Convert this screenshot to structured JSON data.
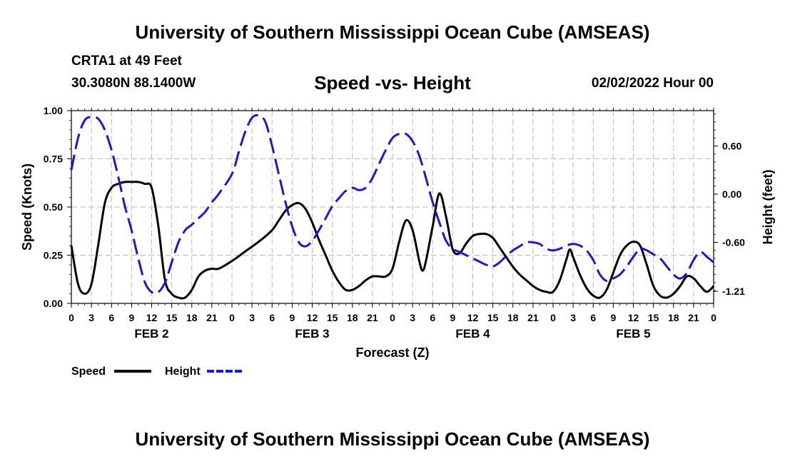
{
  "header": {
    "main_title": "University of Southern Mississippi Ocean Cube (AMSEAS)",
    "station": "CRTA1 at 49 Feet",
    "coordinates": "30.3080N  88.1400W",
    "chart_title": "Speed -vs- Height",
    "timestamp": "02/02/2022 Hour 00"
  },
  "footer": {
    "title": "University of Southern Mississippi Ocean Cube (AMSEAS)"
  },
  "legend": {
    "speed_label": "Speed",
    "height_label": "Height"
  },
  "colors": {
    "speed": "#000000",
    "height": "#1a1acc",
    "grid": "#bbbbbb"
  },
  "chart_data": {
    "type": "line",
    "title": "Speed -vs- Height",
    "xlabel": "Forecast (Z)",
    "ylabel": "Speed (Knots)",
    "y2label": "Height (feet)",
    "xlim": [
      0,
      96
    ],
    "ylim": [
      0,
      1.0
    ],
    "y2lim": [
      -1.36,
      1.04
    ],
    "x_tick_labels": [
      "0",
      "3",
      "6",
      "9",
      "12",
      "15",
      "18",
      "21",
      "0",
      "3",
      "6",
      "9",
      "12",
      "15",
      "18",
      "21",
      "0",
      "3",
      "6",
      "9",
      "12",
      "15",
      "18",
      "21",
      "0",
      "3",
      "6",
      "9",
      "12",
      "15",
      "18",
      "21",
      "0"
    ],
    "y_ticks": [
      {
        "value": 0.0,
        "label": "0.00"
      },
      {
        "value": 0.25,
        "label": "0.25"
      },
      {
        "value": 0.5,
        "label": "0.50"
      },
      {
        "value": 0.75,
        "label": "0.75"
      },
      {
        "value": 1.0,
        "label": "1.00"
      }
    ],
    "y2_ticks": [
      {
        "value": 0.6,
        "label": "0.60"
      },
      {
        "value": 0.0,
        "label": "0.00"
      },
      {
        "value": -0.6,
        "label": "-0.60"
      },
      {
        "value": -1.21,
        "label": "-1.21"
      }
    ],
    "day_labels": [
      {
        "label": "FEB 2",
        "hour": 12
      },
      {
        "label": "FEB 3",
        "hour": 36
      },
      {
        "label": "FEB 4",
        "hour": 60
      },
      {
        "label": "FEB 5",
        "hour": 84
      }
    ],
    "series": [
      {
        "name": "Speed",
        "axis": "left",
        "style": "solid",
        "points": [
          [
            0,
            0.3
          ],
          [
            1,
            0.1
          ],
          [
            2,
            0.05
          ],
          [
            3,
            0.1
          ],
          [
            4,
            0.3
          ],
          [
            5,
            0.52
          ],
          [
            6,
            0.6
          ],
          [
            7,
            0.62
          ],
          [
            8,
            0.63
          ],
          [
            9,
            0.63
          ],
          [
            10,
            0.63
          ],
          [
            11,
            0.62
          ],
          [
            12,
            0.6
          ],
          [
            13,
            0.4
          ],
          [
            14,
            0.12
          ],
          [
            15,
            0.05
          ],
          [
            16,
            0.03
          ],
          [
            17,
            0.03
          ],
          [
            18,
            0.07
          ],
          [
            19,
            0.14
          ],
          [
            20,
            0.17
          ],
          [
            21,
            0.18
          ],
          [
            22,
            0.18
          ],
          [
            24,
            0.22
          ],
          [
            26,
            0.27
          ],
          [
            28,
            0.32
          ],
          [
            30,
            0.38
          ],
          [
            31,
            0.43
          ],
          [
            32,
            0.48
          ],
          [
            33,
            0.51
          ],
          [
            34,
            0.52
          ],
          [
            35,
            0.49
          ],
          [
            36,
            0.42
          ],
          [
            37,
            0.33
          ],
          [
            38,
            0.25
          ],
          [
            39,
            0.17
          ],
          [
            40,
            0.11
          ],
          [
            41,
            0.07
          ],
          [
            42,
            0.07
          ],
          [
            43,
            0.09
          ],
          [
            44,
            0.12
          ],
          [
            45,
            0.14
          ],
          [
            46,
            0.14
          ],
          [
            47,
            0.14
          ],
          [
            48,
            0.18
          ],
          [
            49,
            0.32
          ],
          [
            50,
            0.43
          ],
          [
            51,
            0.38
          ],
          [
            52,
            0.22
          ],
          [
            52.5,
            0.17
          ],
          [
            53,
            0.22
          ],
          [
            54,
            0.4
          ],
          [
            55,
            0.57
          ],
          [
            56,
            0.45
          ],
          [
            57,
            0.28
          ],
          [
            58,
            0.26
          ],
          [
            59,
            0.31
          ],
          [
            60,
            0.35
          ],
          [
            61,
            0.36
          ],
          [
            62,
            0.36
          ],
          [
            63,
            0.34
          ],
          [
            64,
            0.29
          ],
          [
            65,
            0.24
          ],
          [
            66,
            0.19
          ],
          [
            67,
            0.15
          ],
          [
            68,
            0.12
          ],
          [
            69,
            0.09
          ],
          [
            70,
            0.07
          ],
          [
            71,
            0.06
          ],
          [
            72,
            0.06
          ],
          [
            73,
            0.12
          ],
          [
            74,
            0.23
          ],
          [
            74.5,
            0.28
          ],
          [
            75,
            0.24
          ],
          [
            76,
            0.15
          ],
          [
            77,
            0.08
          ],
          [
            78,
            0.04
          ],
          [
            79,
            0.03
          ],
          [
            80,
            0.07
          ],
          [
            81,
            0.16
          ],
          [
            82,
            0.25
          ],
          [
            83,
            0.3
          ],
          [
            84,
            0.32
          ],
          [
            85,
            0.3
          ],
          [
            86,
            0.2
          ],
          [
            87,
            0.09
          ],
          [
            88,
            0.04
          ],
          [
            89,
            0.03
          ],
          [
            90,
            0.05
          ],
          [
            91,
            0.09
          ],
          [
            92,
            0.14
          ],
          [
            93,
            0.13
          ],
          [
            94,
            0.09
          ],
          [
            95,
            0.06
          ],
          [
            96,
            0.09
          ]
        ]
      },
      {
        "name": "Height",
        "axis": "right",
        "style": "dashed",
        "points": [
          [
            0,
            0.3
          ],
          [
            1,
            0.7
          ],
          [
            2,
            0.92
          ],
          [
            3,
            0.96
          ],
          [
            4,
            0.94
          ],
          [
            5,
            0.8
          ],
          [
            6,
            0.55
          ],
          [
            7,
            0.22
          ],
          [
            8,
            -0.15
          ],
          [
            9,
            -0.45
          ],
          [
            10,
            -0.8
          ],
          [
            11,
            -1.1
          ],
          [
            12,
            -1.22
          ],
          [
            13,
            -1.22
          ],
          [
            14,
            -1.1
          ],
          [
            15,
            -0.85
          ],
          [
            16,
            -0.6
          ],
          [
            17,
            -0.45
          ],
          [
            18,
            -0.38
          ],
          [
            19,
            -0.3
          ],
          [
            20,
            -0.22
          ],
          [
            21,
            -0.1
          ],
          [
            22,
            0.0
          ],
          [
            24,
            0.25
          ],
          [
            25,
            0.52
          ],
          [
            26,
            0.78
          ],
          [
            27,
            0.95
          ],
          [
            28,
            0.98
          ],
          [
            29,
            0.9
          ],
          [
            30,
            0.6
          ],
          [
            31,
            0.25
          ],
          [
            32,
            -0.1
          ],
          [
            33,
            -0.4
          ],
          [
            34,
            -0.6
          ],
          [
            35,
            -0.65
          ],
          [
            36,
            -0.58
          ],
          [
            37,
            -0.45
          ],
          [
            38,
            -0.3
          ],
          [
            39,
            -0.15
          ],
          [
            40,
            -0.05
          ],
          [
            41,
            0.04
          ],
          [
            42,
            0.08
          ],
          [
            43,
            0.05
          ],
          [
            44,
            0.08
          ],
          [
            45,
            0.2
          ],
          [
            46,
            0.38
          ],
          [
            47,
            0.55
          ],
          [
            48,
            0.7
          ],
          [
            49,
            0.75
          ],
          [
            50,
            0.75
          ],
          [
            51,
            0.66
          ],
          [
            52,
            0.48
          ],
          [
            53,
            0.2
          ],
          [
            54,
            -0.1
          ],
          [
            55,
            -0.35
          ],
          [
            56,
            -0.58
          ],
          [
            57,
            -0.68
          ],
          [
            58,
            -0.72
          ],
          [
            59,
            -0.76
          ],
          [
            60,
            -0.8
          ],
          [
            61,
            -0.84
          ],
          [
            62,
            -0.88
          ],
          [
            63,
            -0.9
          ],
          [
            64,
            -0.85
          ],
          [
            65,
            -0.77
          ],
          [
            66,
            -0.7
          ],
          [
            67,
            -0.65
          ],
          [
            68,
            -0.6
          ],
          [
            69,
            -0.6
          ],
          [
            70,
            -0.62
          ],
          [
            71,
            -0.68
          ],
          [
            72,
            -0.7
          ],
          [
            73,
            -0.68
          ],
          [
            74,
            -0.64
          ],
          [
            75,
            -0.62
          ],
          [
            76,
            -0.64
          ],
          [
            77,
            -0.7
          ],
          [
            78,
            -0.82
          ],
          [
            79,
            -1.0
          ],
          [
            80,
            -1.08
          ],
          [
            81,
            -1.05
          ],
          [
            82,
            -1.0
          ],
          [
            83,
            -0.9
          ],
          [
            84,
            -0.78
          ],
          [
            85,
            -0.68
          ],
          [
            86,
            -0.7
          ],
          [
            87,
            -0.75
          ],
          [
            88,
            -0.8
          ],
          [
            89,
            -0.9
          ],
          [
            90,
            -1.0
          ],
          [
            91,
            -1.05
          ],
          [
            92,
            -0.98
          ],
          [
            93,
            -0.82
          ],
          [
            94,
            -0.72
          ],
          [
            95,
            -0.78
          ],
          [
            96,
            -0.85
          ]
        ]
      }
    ]
  }
}
